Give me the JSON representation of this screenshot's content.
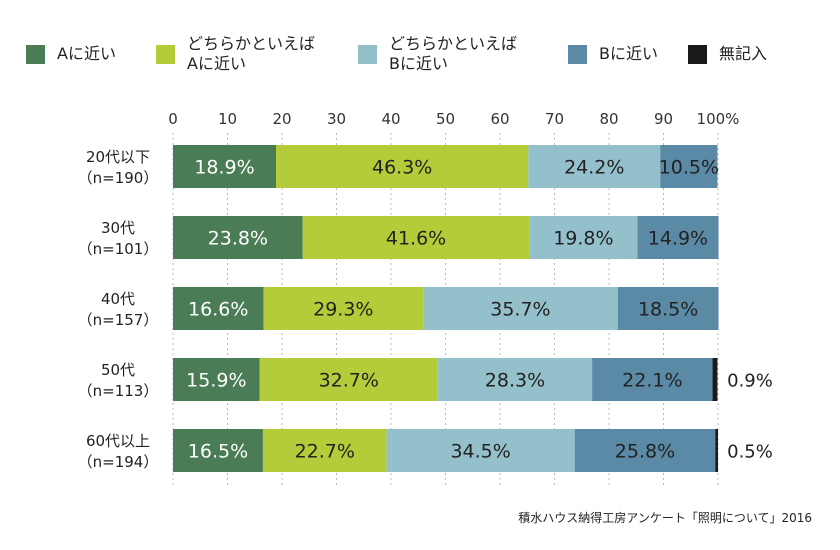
{
  "chart_data": {
    "type": "bar",
    "orientation": "horizontal",
    "stacked": true,
    "percent_axis": true,
    "xlim": [
      0,
      100
    ],
    "ticks": [
      "0",
      "10",
      "20",
      "30",
      "40",
      "50",
      "60",
      "70",
      "80",
      "90",
      "100%"
    ],
    "categories": [
      {
        "line1": "20代以下",
        "line2": "（n=190）"
      },
      {
        "line1": "30代",
        "line2": "（n=101）"
      },
      {
        "line1": "40代",
        "line2": "（n=157）"
      },
      {
        "line1": "50代",
        "line2": "（n=113）"
      },
      {
        "line1": "60代以上",
        "line2": "（n=194）"
      }
    ],
    "series": [
      {
        "name": "Aに近い",
        "color": "#4a7d55",
        "values": [
          18.9,
          23.8,
          16.6,
          15.9,
          16.5
        ]
      },
      {
        "name": "どちらかといえば\nAに近い",
        "color": "#b5cc3a",
        "values": [
          46.3,
          41.6,
          29.3,
          32.7,
          22.7
        ]
      },
      {
        "name": "どちらかといえば\nBに近い",
        "color": "#94c0cb",
        "values": [
          24.2,
          19.8,
          35.7,
          28.3,
          34.5
        ]
      },
      {
        "name": "Bに近い",
        "color": "#5b8aa6",
        "values": [
          10.5,
          14.9,
          18.5,
          22.1,
          25.8
        ]
      },
      {
        "name": "無記入",
        "color": "#1a1a1a",
        "values": [
          0,
          0,
          0,
          0.9,
          0.5
        ]
      }
    ],
    "segment_labels": [
      [
        "18.9%",
        "46.3%",
        "24.2%",
        "10.5%",
        ""
      ],
      [
        "23.8%",
        "41.6%",
        "19.8%",
        "14.9%",
        ""
      ],
      [
        "16.6%",
        "29.3%",
        "35.7%",
        "18.5%",
        ""
      ],
      [
        "15.9%",
        "32.7%",
        "28.3%",
        "22.1%",
        "0.9%"
      ],
      [
        "16.5%",
        "22.7%",
        "34.5%",
        "25.8%",
        "0.5%"
      ]
    ],
    "grid": true
  },
  "source": "積水ハウス納得工房アンケート「照明について」2016"
}
